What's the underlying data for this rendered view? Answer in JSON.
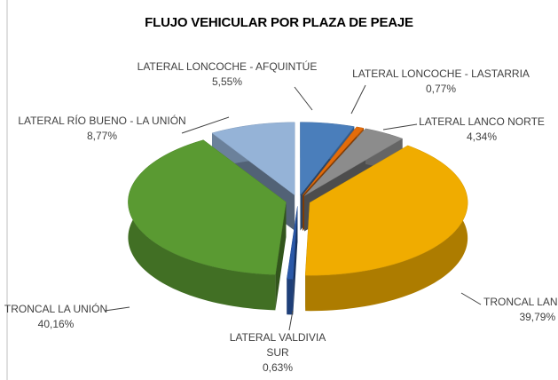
{
  "chart_data": {
    "type": "pie",
    "title": "FLUJO VEHICULAR POR PLAZA DE PEAJE",
    "categories": [
      "LATERAL LONCOCHE - AFQUINTÚE",
      "LATERAL LONCOCHE - LASTARRIA",
      "LATERAL LANCO NORTE",
      "TRONCAL LANCO",
      "LATERAL VALDIVIA SUR",
      "TRONCAL LA UNIÓN",
      "LATERAL RÍO BUENO - LA UNIÓN"
    ],
    "values": [
      5.55,
      0.77,
      4.34,
      39.79,
      0.63,
      40.16,
      8.77
    ],
    "value_labels": [
      "5,55%",
      "0,77%",
      "4,34%",
      "39,79%",
      "0,63%",
      "40,16%",
      "8,77%"
    ],
    "colors": [
      "#4a7ebb",
      "#e36c0a",
      "#8c8c8c",
      "#f0ac00",
      "#2a58a8",
      "#5a9a32",
      "#95b3d7"
    ]
  }
}
